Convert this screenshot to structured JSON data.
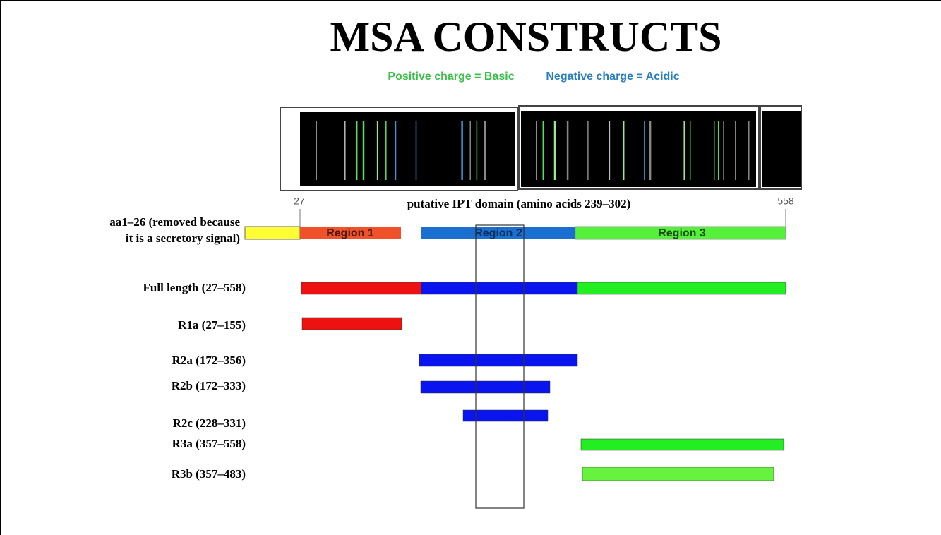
{
  "title": "MSA CONSTRUCTS",
  "legend": {
    "basic": "Positive charge = Basic",
    "acidic": "Negative charge = Acidic"
  },
  "axis": {
    "start": "27",
    "end": "558"
  },
  "domain_label": "putative IPT domain (amino acids 239–302)",
  "signal_label": [
    "aa1–26 (removed because",
    "it is a secretory signal)"
  ],
  "regions": [
    "Region 1",
    "Region 2",
    "Region 3"
  ],
  "constructs": [
    "Full length (27–558)",
    "R1a (27–155)",
    "R2a (172–356)",
    "R2b (172–333)",
    "R2c (228–331)",
    "R3a (357–558)",
    "R3b (357–483)"
  ]
}
